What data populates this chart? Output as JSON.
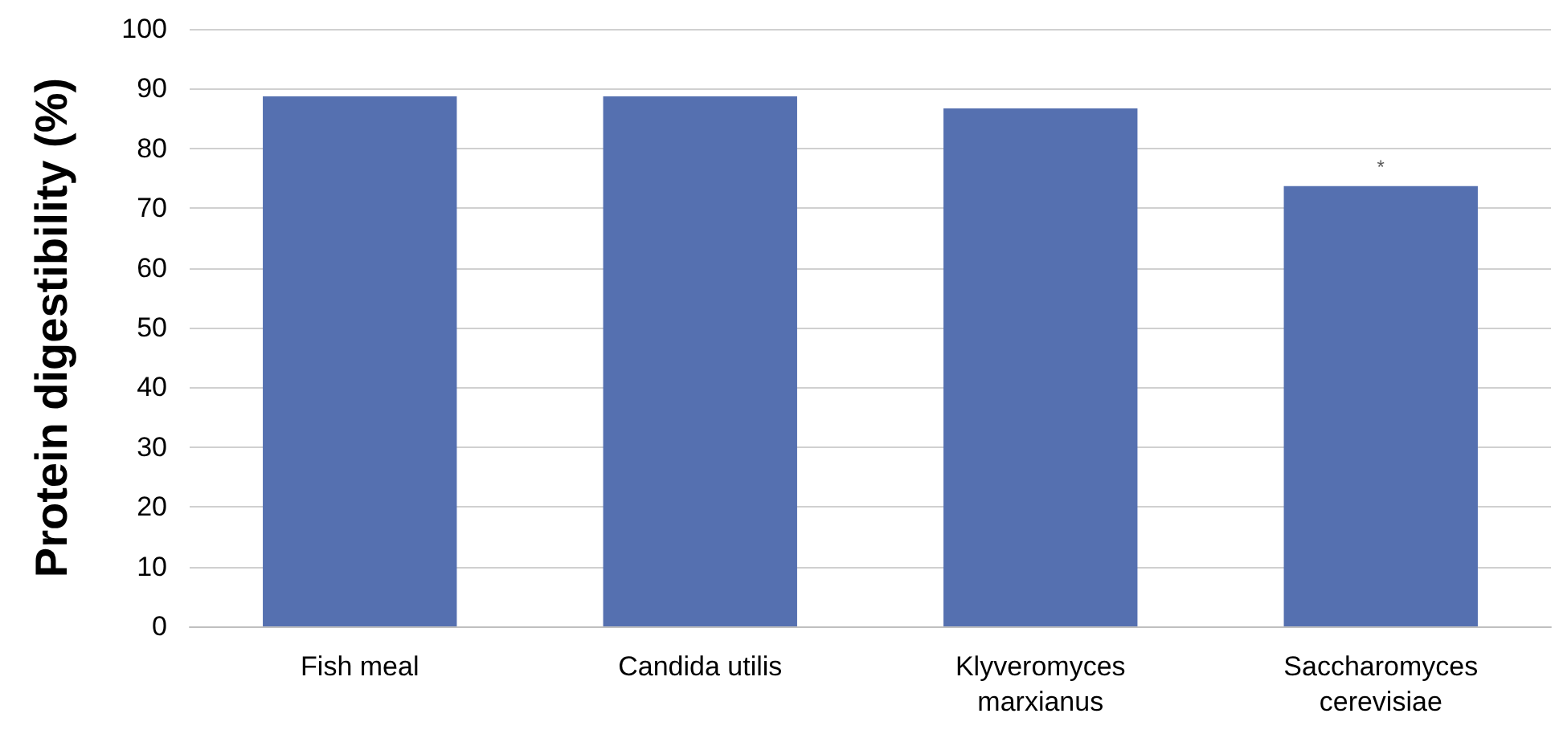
{
  "chart_data": {
    "type": "bar",
    "ylabel": "Protein digestibility (%)",
    "categories": [
      "Fish meal",
      "Candida utilis",
      "Klyveromyces\nmarxianus",
      "Saccharomyces\ncerevisiae"
    ],
    "values": [
      88.7,
      88.7,
      86.7,
      73.7
    ],
    "color": "#5570b0",
    "ylim": [
      0,
      100
    ],
    "yticks": [
      0,
      10,
      20,
      30,
      40,
      50,
      60,
      70,
      80,
      90,
      100
    ],
    "grid": "y",
    "annotations": [
      {
        "text": "*",
        "x": "Saccharomyces\ncerevisiae",
        "y": 73.7
      }
    ]
  }
}
